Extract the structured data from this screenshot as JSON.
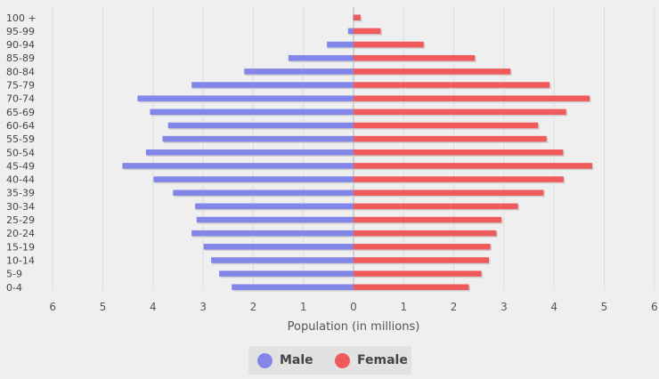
{
  "chart_data": {
    "type": "bar",
    "orientation": "horizontal-pyramid",
    "categories": [
      "0-4",
      "5-9",
      "10-14",
      "15-19",
      "20-24",
      "25-29",
      "30-34",
      "35-39",
      "40-44",
      "45-49",
      "50-54",
      "55-59",
      "60-64",
      "65-69",
      "70-74",
      "75-79",
      "80-84",
      "85-89",
      "90-94",
      "95-99",
      "100 +"
    ],
    "series": [
      {
        "name": "Male",
        "color": "#8286e8",
        "values": [
          2.43,
          2.68,
          2.84,
          2.99,
          3.23,
          3.13,
          3.16,
          3.6,
          3.99,
          4.61,
          4.14,
          3.81,
          3.7,
          4.06,
          4.31,
          3.23,
          2.18,
          1.3,
          0.53,
          0.11,
          0.01
        ]
      },
      {
        "name": "Female",
        "color": "#f05a5a",
        "values": [
          2.3,
          2.55,
          2.7,
          2.73,
          2.85,
          2.95,
          3.28,
          3.79,
          4.19,
          4.76,
          4.18,
          3.85,
          3.68,
          4.24,
          4.71,
          3.91,
          3.13,
          2.42,
          1.4,
          0.54,
          0.14
        ]
      }
    ],
    "xlabel": "Population (in millions)",
    "xticks": [
      "6",
      "5",
      "4",
      "3",
      "2",
      "1",
      "0",
      "1",
      "2",
      "3",
      "4",
      "5",
      "6"
    ],
    "xlim": [
      -6,
      6
    ],
    "grid": true,
    "legend_position": "bottom-center"
  },
  "legend": {
    "male_label": "Male",
    "female_label": "Female"
  }
}
